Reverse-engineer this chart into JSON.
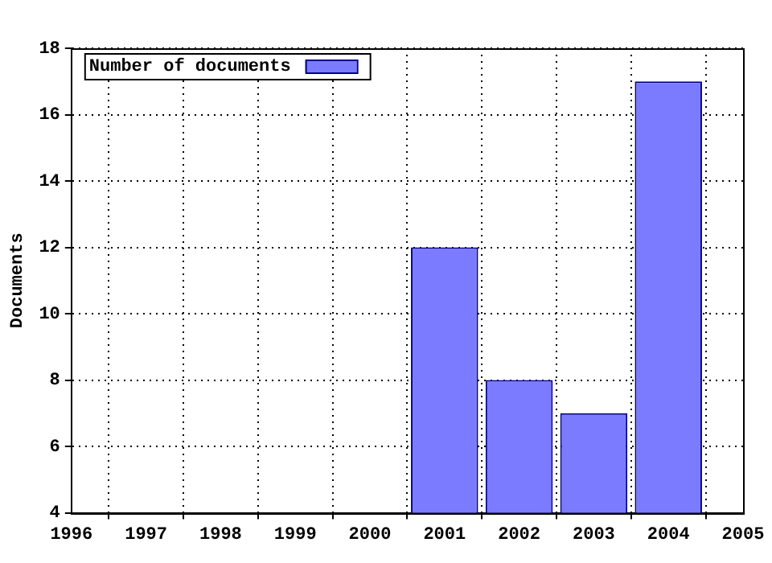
{
  "chart_data": {
    "type": "bar",
    "ylabel": "Documents",
    "x": [
      2001,
      2002,
      2003,
      2004
    ],
    "series": [
      {
        "name": "Number of documents",
        "color": "#7b7bff",
        "values": [
          12,
          8,
          7,
          17
        ]
      }
    ],
    "xlim": [
      1996,
      2005
    ],
    "xticks": [
      1996,
      1997,
      1998,
      1999,
      2000,
      2001,
      2002,
      2003,
      2004,
      2005
    ],
    "ylim": [
      4,
      18
    ],
    "yticks": [
      4,
      6,
      8,
      10,
      12,
      14,
      16,
      18
    ],
    "grid": true,
    "legend": "top left"
  }
}
